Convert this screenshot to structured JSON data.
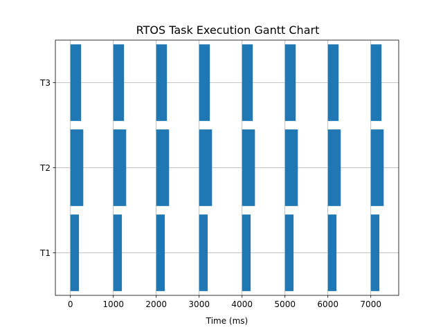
{
  "chart_data": {
    "type": "gantt",
    "title": "RTOS Task Execution Gantt Chart",
    "xlabel": "Time (ms)",
    "ylabel": "",
    "xlim": [
      -350,
      7650
    ],
    "xticks": [
      0,
      1000,
      2000,
      3000,
      4000,
      5000,
      6000,
      7000
    ],
    "categories": [
      "T1",
      "T2",
      "T3"
    ],
    "grid": true,
    "bar_color": "#1f77b4",
    "series": [
      {
        "task": "T1",
        "intervals": [
          [
            0,
            200
          ],
          [
            1000,
            1200
          ],
          [
            2000,
            2200
          ],
          [
            3000,
            3200
          ],
          [
            4000,
            4200
          ],
          [
            5000,
            5200
          ],
          [
            6000,
            6200
          ],
          [
            7000,
            7200
          ]
        ]
      },
      {
        "task": "T2",
        "intervals": [
          [
            0,
            300
          ],
          [
            1000,
            1300
          ],
          [
            2000,
            2300
          ],
          [
            3000,
            3300
          ],
          [
            4000,
            4300
          ],
          [
            5000,
            5300
          ],
          [
            6000,
            6300
          ],
          [
            7000,
            7300
          ]
        ]
      },
      {
        "task": "T3",
        "intervals": [
          [
            0,
            250
          ],
          [
            1000,
            1250
          ],
          [
            2000,
            2250
          ],
          [
            3000,
            3250
          ],
          [
            4000,
            4250
          ],
          [
            5000,
            5250
          ],
          [
            6000,
            6250
          ],
          [
            7000,
            7250
          ]
        ]
      }
    ]
  }
}
